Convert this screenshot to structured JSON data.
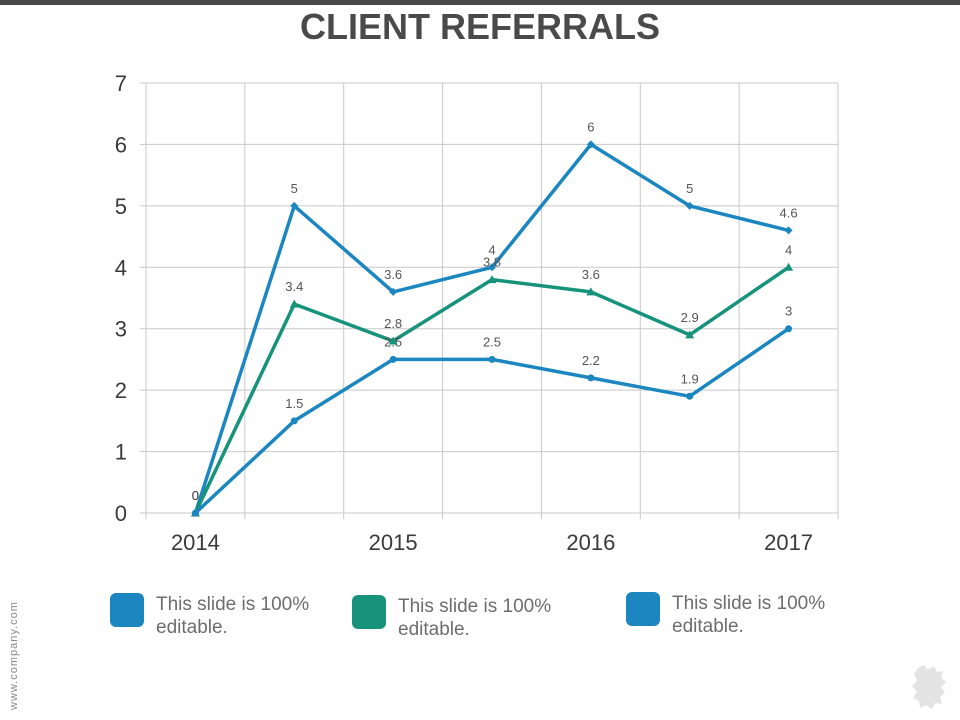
{
  "slide": {
    "title": "CLIENT REFERRALS",
    "website": "www.company.com"
  },
  "legend": [
    {
      "text": "This slide is 100% editable.",
      "color": "#1b86c0"
    },
    {
      "text": "This slide is 100% editable.",
      "color": "#16937a"
    },
    {
      "text": "This slide is 100% editable.",
      "color": "#1b86c0"
    }
  ],
  "colors": {
    "blue": "#1b86c0",
    "green": "#16937a",
    "grid": "#c8c8c8",
    "logo": "#e3e3e3"
  },
  "icons": {
    "logo": "brush-splash-logo"
  },
  "chart_data": {
    "type": "line",
    "title": "CLIENT REFERRALS",
    "x_count": 7,
    "x_tick_labels": [
      {
        "index": 0,
        "label": "2014"
      },
      {
        "index": 2,
        "label": "2015"
      },
      {
        "index": 4,
        "label": "2016"
      },
      {
        "index": 6,
        "label": "2017"
      }
    ],
    "ylim": [
      0,
      7
    ],
    "y_ticks": [
      0,
      1,
      2,
      3,
      4,
      5,
      6,
      7
    ],
    "grid": true,
    "series": [
      {
        "values": [
          0,
          5,
          3.6,
          4,
          6,
          5,
          4.6
        ],
        "color": "#1b86c0",
        "marker": "diamond"
      },
      {
        "values": [
          0,
          3.4,
          2.8,
          3.8,
          3.6,
          2.9,
          4
        ],
        "color": "#16937a",
        "marker": "triangle"
      },
      {
        "values": [
          0,
          1.5,
          2.5,
          2.5,
          2.2,
          1.9,
          3
        ],
        "color": "#1b86c0",
        "marker": "circle"
      }
    ]
  }
}
